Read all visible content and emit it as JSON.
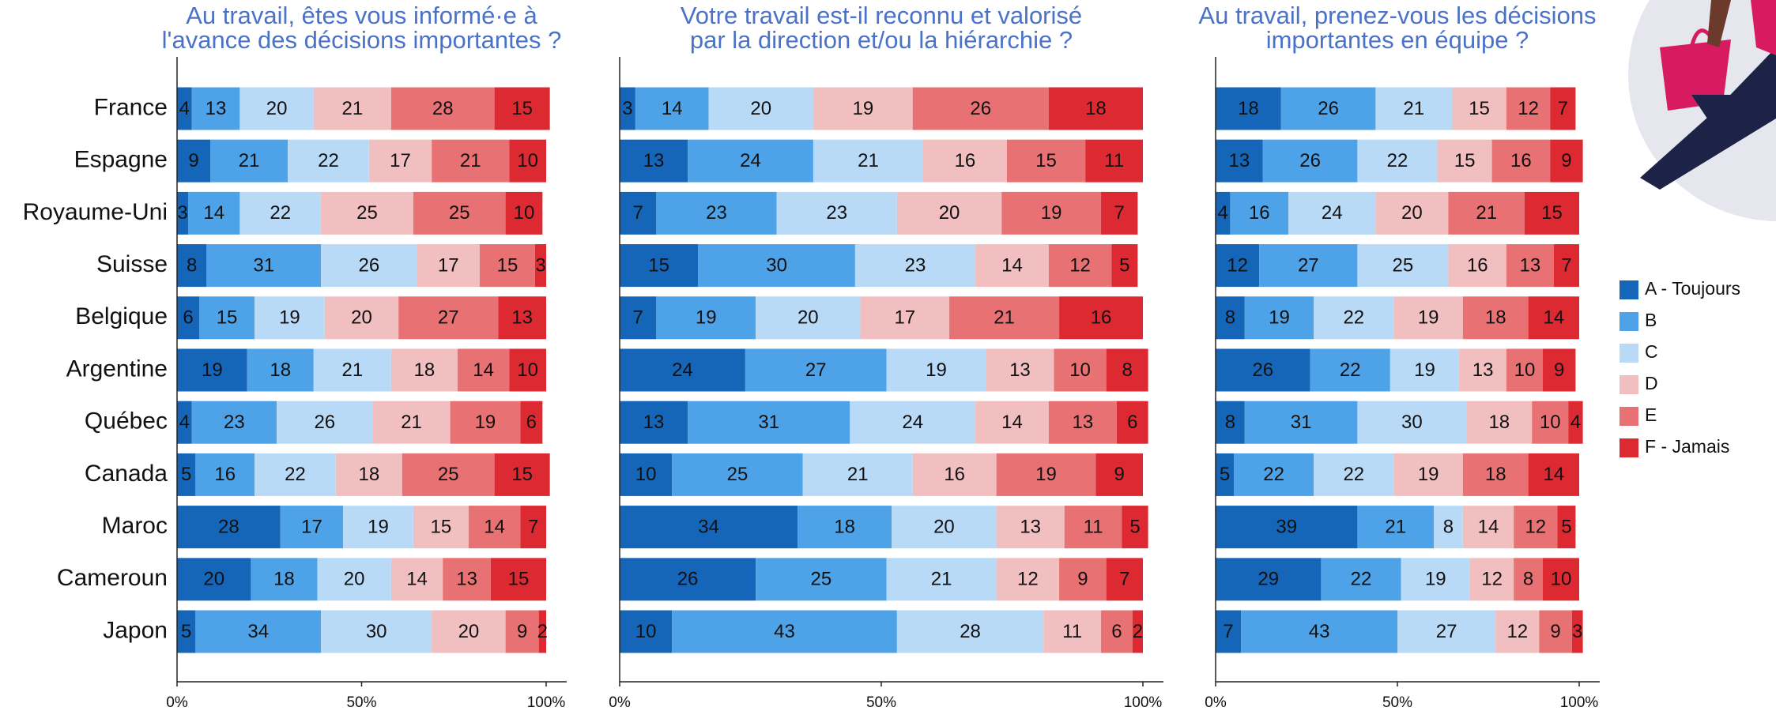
{
  "chart_data": [
    {
      "type": "bar",
      "orientation": "horizontal",
      "stacked": true,
      "title": [
        "Au travail, êtes vous informé·e à",
        "l'avance des décisions importantes ?"
      ],
      "categories": [
        "France",
        "Espagne",
        "Royaume-Uni",
        "Suisse",
        "Belgique",
        "Argentine",
        "Québec",
        "Canada",
        "Maroc",
        "Cameroun",
        "Japon"
      ],
      "series": [
        {
          "color": "#1565b8",
          "values": [
            4,
            9,
            3,
            8,
            6,
            19,
            4,
            5,
            28,
            20,
            5
          ]
        },
        {
          "color": "#4ea3e8",
          "values": [
            13,
            21,
            14,
            31,
            15,
            18,
            23,
            16,
            17,
            18,
            34
          ]
        },
        {
          "color": "#b9daf7",
          "values": [
            20,
            22,
            22,
            26,
            19,
            21,
            26,
            22,
            19,
            20,
            30
          ]
        },
        {
          "color": "#f2bfc0",
          "values": [
            21,
            17,
            25,
            17,
            20,
            18,
            21,
            18,
            15,
            14,
            20
          ]
        },
        {
          "color": "#e87173",
          "values": [
            28,
            21,
            25,
            15,
            27,
            14,
            19,
            25,
            14,
            13,
            9
          ]
        },
        {
          "color": "#dd2a32",
          "values": [
            15,
            10,
            10,
            3,
            13,
            10,
            6,
            15,
            7,
            15,
            2
          ]
        }
      ],
      "xlim": [
        0,
        100
      ],
      "xticks": [
        {
          "value": 0,
          "label": "0%"
        },
        {
          "value": 50,
          "label": "50%"
        },
        {
          "value": 100,
          "label": "100%"
        }
      ]
    },
    {
      "type": "bar",
      "orientation": "horizontal",
      "stacked": true,
      "title": [
        "Votre travail est-il reconnu et valorisé",
        "par la direction et/ou la hiérarchie ?"
      ],
      "series": [
        {
          "color": "#1565b8",
          "values": [
            3,
            13,
            7,
            15,
            7,
            24,
            13,
            10,
            34,
            26,
            10
          ]
        },
        {
          "color": "#4ea3e8",
          "values": [
            14,
            24,
            23,
            30,
            19,
            27,
            31,
            25,
            18,
            25,
            43
          ]
        },
        {
          "color": "#b9daf7",
          "values": [
            20,
            21,
            23,
            23,
            20,
            19,
            24,
            21,
            20,
            21,
            28
          ]
        },
        {
          "color": "#f2bfc0",
          "values": [
            19,
            16,
            20,
            14,
            17,
            13,
            14,
            16,
            13,
            12,
            11
          ]
        },
        {
          "color": "#e87173",
          "values": [
            26,
            15,
            19,
            12,
            21,
            10,
            13,
            19,
            11,
            9,
            6
          ]
        },
        {
          "color": "#dd2a32",
          "values": [
            18,
            11,
            7,
            5,
            16,
            8,
            6,
            9,
            5,
            7,
            2
          ]
        }
      ],
      "xlim": [
        0,
        100
      ],
      "xticks": [
        {
          "value": 0,
          "label": "0%"
        },
        {
          "value": 50,
          "label": "50%"
        },
        {
          "value": 100,
          "label": "100%"
        }
      ]
    },
    {
      "type": "bar",
      "orientation": "horizontal",
      "stacked": true,
      "title": [
        "Au travail, prenez-vous les décisions",
        "importantes en équipe ?"
      ],
      "series": [
        {
          "name": "A - Toujours",
          "color": "#1565b8",
          "values": [
            18,
            13,
            4,
            12,
            8,
            26,
            8,
            5,
            39,
            29,
            7
          ]
        },
        {
          "name": "B",
          "color": "#4ea3e8",
          "values": [
            26,
            26,
            16,
            27,
            19,
            22,
            31,
            22,
            21,
            22,
            43
          ]
        },
        {
          "name": "C",
          "color": "#b9daf7",
          "values": [
            21,
            22,
            24,
            25,
            22,
            19,
            30,
            22,
            8,
            19,
            27
          ]
        },
        {
          "name": "D",
          "color": "#f2bfc0",
          "values": [
            15,
            15,
            20,
            16,
            19,
            13,
            18,
            19,
            14,
            12,
            12
          ]
        },
        {
          "name": "E",
          "color": "#e87173",
          "values": [
            12,
            16,
            21,
            13,
            18,
            10,
            10,
            18,
            12,
            8,
            9
          ]
        },
        {
          "name": "F - Jamais",
          "color": "#dd2a32",
          "values": [
            7,
            9,
            15,
            7,
            14,
            9,
            4,
            14,
            5,
            10,
            3
          ]
        }
      ],
      "xlim": [
        0,
        100
      ],
      "xticks": [
        {
          "value": 0,
          "label": "0%"
        },
        {
          "value": 50,
          "label": "50%"
        },
        {
          "value": 100,
          "label": "100%"
        }
      ],
      "legend": "right"
    }
  ]
}
